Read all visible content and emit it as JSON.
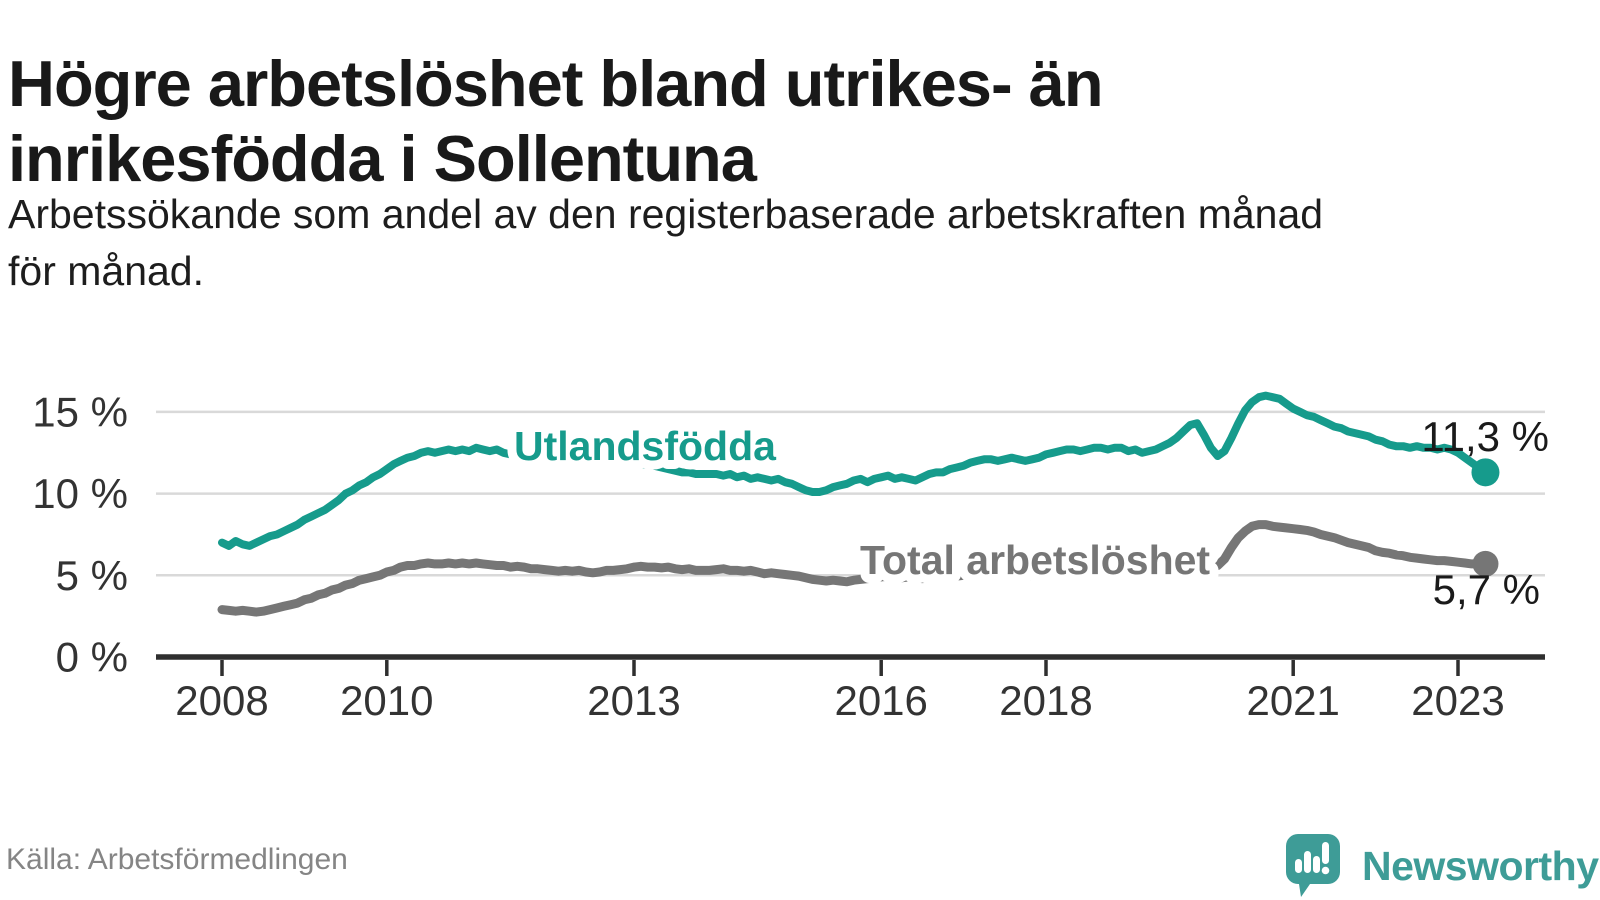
{
  "header": {
    "title": "Högre arbetslöshet bland utrikes- än inrikesfödda i Sollentuna",
    "title_lines": [
      "Högre arbetslöshet bland utrikes- än",
      "inrikesfödda i Sollentuna"
    ],
    "subtitle": "Arbetssökande som andel av den registerbaserade arbetskraften månad för månad.",
    "subtitle_lines": [
      "Arbetssökande som andel av den registerbaserade arbetskraften månad",
      "för månad."
    ]
  },
  "footer": {
    "source": "Källa: Arbetsförmedlingen",
    "brand_name": "Newsworthy"
  },
  "colors": {
    "accent_teal": "#169b8c",
    "series_gray": "#767676",
    "grid": "#d9d9d9",
    "axis": "#2f2f2f",
    "tick_text": "#333333",
    "title_text": "#191919",
    "source_text": "#858585",
    "brand_teal": "#3e9c97",
    "end_label_text": "#1a1a1a",
    "background": "#ffffff"
  },
  "chart_data": {
    "type": "line",
    "title": "Högre arbetslöshet bland utrikes- än inrikesfödda i Sollentuna",
    "subtitle": "Arbetssökande som andel av den registerbaserade arbetskraften månad för månad.",
    "source": "Källa: Arbetsförmedlingen",
    "x_unit": "month",
    "x_start": "2008-01",
    "x_end": "2023-05",
    "ylim": [
      0,
      16.5
    ],
    "grid": "horizontal",
    "legend_position": "inline-line-labels",
    "yticks": [
      {
        "value": 0,
        "label": "0 %"
      },
      {
        "value": 5,
        "label": "5 %"
      },
      {
        "value": 10,
        "label": "10 %"
      },
      {
        "value": 15,
        "label": "15 %"
      }
    ],
    "xticks": [
      {
        "value": 2008,
        "label": "2008"
      },
      {
        "value": 2010,
        "label": "2010"
      },
      {
        "value": 2013,
        "label": "2013"
      },
      {
        "value": 2016,
        "label": "2016"
      },
      {
        "value": 2018,
        "label": "2018"
      },
      {
        "value": 2021,
        "label": "2021"
      },
      {
        "value": 2023,
        "label": "2023"
      }
    ],
    "series": [
      {
        "name": "Utlandsfödda",
        "color": "#169b8c",
        "end_label": "11,3 %",
        "end_value": 11.3,
        "values": [
          7.0,
          6.8,
          7.1,
          6.9,
          6.8,
          7.0,
          7.2,
          7.4,
          7.5,
          7.7,
          7.9,
          8.1,
          8.4,
          8.6,
          8.8,
          9.0,
          9.3,
          9.6,
          10.0,
          10.2,
          10.5,
          10.7,
          11.0,
          11.2,
          11.5,
          11.8,
          12.0,
          12.2,
          12.3,
          12.5,
          12.6,
          12.5,
          12.6,
          12.7,
          12.6,
          12.7,
          12.6,
          12.8,
          12.7,
          12.6,
          12.7,
          12.5,
          12.4,
          12.5,
          12.6,
          12.4,
          12.5,
          12.4,
          12.5,
          12.4,
          12.5,
          12.4,
          12.3,
          12.4,
          12.5,
          12.4,
          12.3,
          12.2,
          12.1,
          12.0,
          11.9,
          11.8,
          11.8,
          11.7,
          11.6,
          11.5,
          11.4,
          11.3,
          11.3,
          11.2,
          11.2,
          11.2,
          11.2,
          11.1,
          11.2,
          11.0,
          11.1,
          10.9,
          11.0,
          10.9,
          10.8,
          10.9,
          10.7,
          10.6,
          10.4,
          10.2,
          10.1,
          10.1,
          10.2,
          10.4,
          10.5,
          10.6,
          10.8,
          10.9,
          10.7,
          10.9,
          11.0,
          11.1,
          10.9,
          11.0,
          10.9,
          10.8,
          11.0,
          11.2,
          11.3,
          11.3,
          11.5,
          11.6,
          11.7,
          11.9,
          12.0,
          12.1,
          12.1,
          12.0,
          12.1,
          12.2,
          12.1,
          12.0,
          12.1,
          12.2,
          12.4,
          12.5,
          12.6,
          12.7,
          12.7,
          12.6,
          12.7,
          12.8,
          12.8,
          12.7,
          12.8,
          12.8,
          12.6,
          12.7,
          12.5,
          12.6,
          12.7,
          12.9,
          13.1,
          13.4,
          13.8,
          14.2,
          14.3,
          13.6,
          12.8,
          12.3,
          12.6,
          13.4,
          14.3,
          15.1,
          15.6,
          15.9,
          16.0,
          15.9,
          15.8,
          15.5,
          15.2,
          15.0,
          14.8,
          14.7,
          14.5,
          14.3,
          14.1,
          14.0,
          13.8,
          13.7,
          13.6,
          13.5,
          13.3,
          13.2,
          13.0,
          12.9,
          12.9,
          12.8,
          12.9,
          12.8,
          12.8,
          12.7,
          12.8,
          12.7,
          12.5,
          12.2,
          11.9,
          11.6,
          11.3
        ]
      },
      {
        "name": "Total arbetslöshet",
        "color": "#767676",
        "end_label": "5,7 %",
        "end_value": 5.7,
        "values": [
          2.9,
          2.85,
          2.8,
          2.85,
          2.8,
          2.75,
          2.8,
          2.9,
          3.0,
          3.1,
          3.2,
          3.3,
          3.5,
          3.6,
          3.8,
          3.9,
          4.1,
          4.2,
          4.4,
          4.5,
          4.7,
          4.8,
          4.9,
          5.0,
          5.2,
          5.3,
          5.5,
          5.6,
          5.6,
          5.7,
          5.75,
          5.7,
          5.7,
          5.75,
          5.7,
          5.75,
          5.7,
          5.75,
          5.7,
          5.65,
          5.6,
          5.6,
          5.5,
          5.55,
          5.5,
          5.4,
          5.4,
          5.35,
          5.3,
          5.25,
          5.3,
          5.25,
          5.3,
          5.2,
          5.15,
          5.2,
          5.3,
          5.3,
          5.35,
          5.4,
          5.5,
          5.55,
          5.5,
          5.5,
          5.45,
          5.5,
          5.4,
          5.35,
          5.4,
          5.3,
          5.3,
          5.3,
          5.35,
          5.4,
          5.3,
          5.3,
          5.25,
          5.3,
          5.2,
          5.1,
          5.15,
          5.1,
          5.05,
          5.0,
          4.95,
          4.85,
          4.75,
          4.7,
          4.65,
          4.7,
          4.65,
          4.6,
          4.7,
          4.75,
          4.8,
          4.85,
          4.9,
          4.95,
          4.9,
          4.85,
          4.9,
          4.85,
          4.8,
          4.85,
          4.9,
          4.95,
          4.9,
          4.95,
          5.0,
          4.95,
          5.0,
          4.95,
          4.9,
          4.95,
          4.9,
          4.85,
          4.9,
          4.95,
          5.0,
          5.0,
          5.0,
          5.05,
          5.0,
          4.95,
          5.0,
          4.95,
          5.0,
          5.05,
          5.0,
          5.05,
          5.1,
          5.1,
          5.1,
          5.15,
          5.1,
          5.15,
          5.2,
          5.25,
          5.3,
          5.35,
          5.4,
          5.45,
          5.5,
          5.5,
          5.5,
          5.6,
          6.0,
          6.7,
          7.3,
          7.7,
          8.0,
          8.1,
          8.1,
          8.0,
          7.95,
          7.9,
          7.85,
          7.8,
          7.75,
          7.65,
          7.5,
          7.4,
          7.3,
          7.15,
          7.0,
          6.9,
          6.8,
          6.7,
          6.5,
          6.4,
          6.35,
          6.25,
          6.2,
          6.1,
          6.05,
          6.0,
          5.95,
          5.9,
          5.9,
          5.85,
          5.8,
          5.75,
          5.7,
          5.7,
          5.7
        ]
      }
    ]
  }
}
